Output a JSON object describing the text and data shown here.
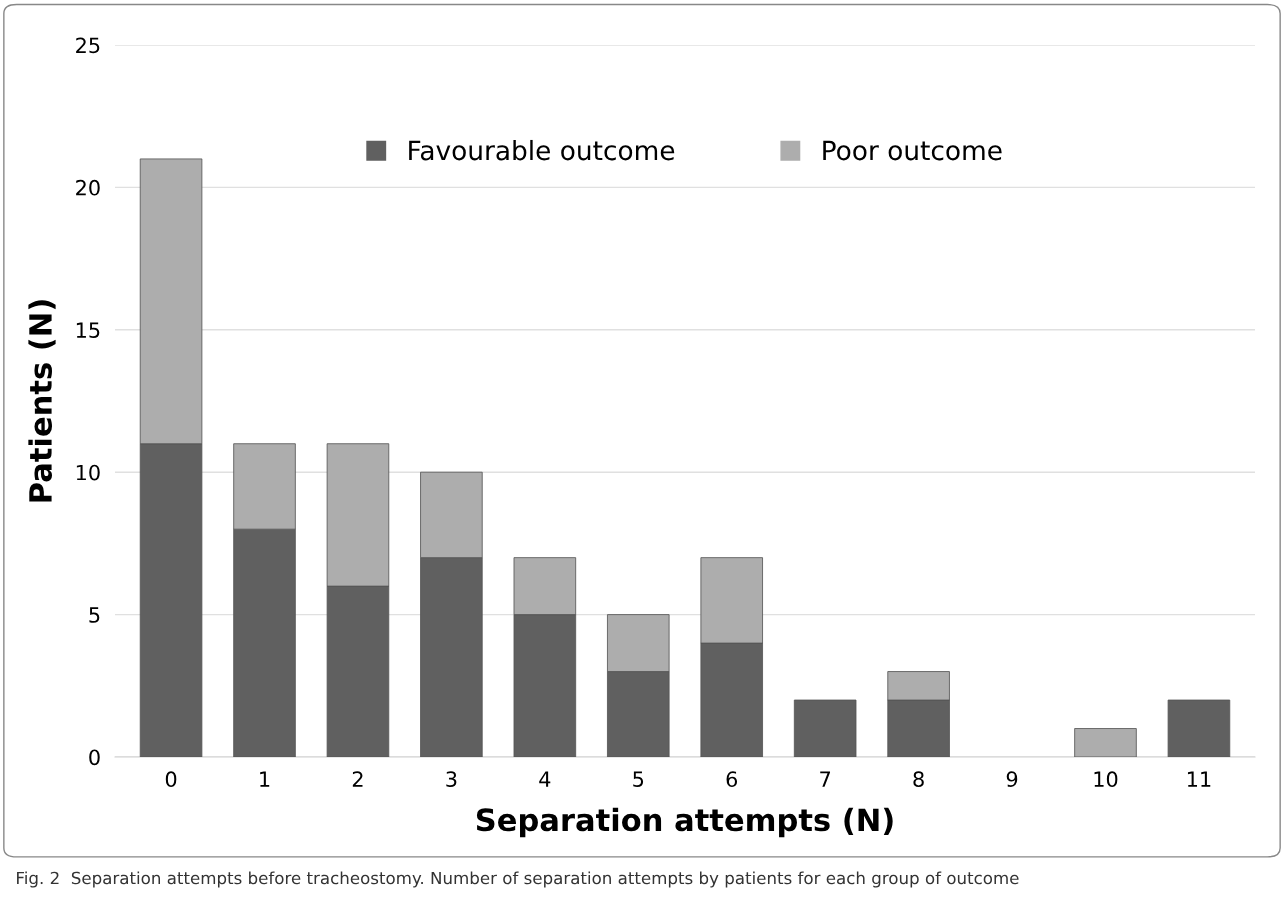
{
  "chart_data": {
    "type": "bar",
    "stacked": true,
    "categories": [
      "0",
      "1",
      "2",
      "3",
      "4",
      "5",
      "6",
      "7",
      "8",
      "9",
      "10",
      "11"
    ],
    "series": [
      {
        "name": "Favourable outcome",
        "color": "#606060",
        "values": [
          11,
          8,
          6,
          7,
          5,
          3,
          4,
          2,
          2,
          0,
          0,
          2
        ]
      },
      {
        "name": "Poor outcome",
        "color": "#adadad",
        "values": [
          10,
          3,
          5,
          3,
          2,
          2,
          3,
          0,
          1,
          0,
          1,
          0
        ]
      }
    ],
    "xlabel": "Separation attempts (N)",
    "ylabel": "Patients (N)",
    "ylim": [
      0,
      25
    ],
    "yticks": [
      0,
      5,
      10,
      15,
      20,
      25
    ],
    "grid": "y",
    "legend": "top",
    "annotations": [
      "Fig. 2  Separation attempts before tracheostomy. Number of separation attempts by patients for each group of outcome"
    ]
  }
}
